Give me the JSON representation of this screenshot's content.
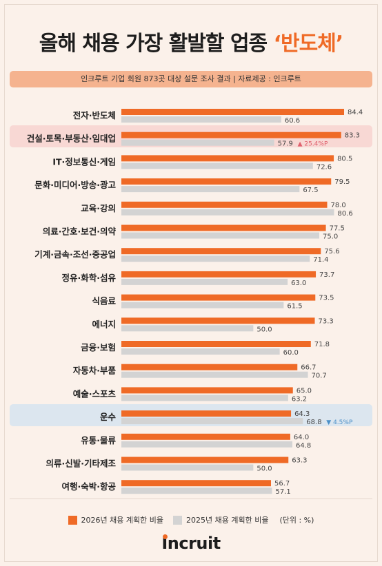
{
  "title": {
    "main": "올해 채용 가장 활발할 업종 ",
    "accent": "‘반도체’"
  },
  "subtitle": "인크루트 기업 회원 873곳 대상 설문 조사 결과 | 자료제공 : 인크루트",
  "chart_data": {
    "type": "bar",
    "orientation": "horizontal",
    "categories": [
      "전자·반도체",
      "건설·토목·부동산·임대업",
      "IT·정보통신·게임",
      "문화·미디어·방송·광고",
      "교육·강의",
      "의료·간호·보건·의약",
      "기계·금속·조선·중공업",
      "정유·화학·섬유",
      "식음료",
      "에너지",
      "금융·보험",
      "자동차·부품",
      "예술·스포츠",
      "운수",
      "유통·물류",
      "의류·신발·기타제조",
      "여행·숙박·항공"
    ],
    "series": [
      {
        "name": "2026년 채용 계획한 비율",
        "color": "#ef6a26",
        "values": [
          84.4,
          83.3,
          80.5,
          79.5,
          78.0,
          77.5,
          75.6,
          73.7,
          73.5,
          73.3,
          71.8,
          66.7,
          65.0,
          64.3,
          64.0,
          63.3,
          56.7
        ]
      },
      {
        "name": "2025년 채용 계획한 비율",
        "color": "#d3d3d3",
        "values": [
          60.6,
          57.9,
          72.6,
          67.5,
          80.6,
          75.0,
          71.4,
          63.0,
          61.5,
          50.0,
          60.0,
          70.7,
          63.2,
          68.8,
          64.8,
          50.0,
          57.1
        ]
      }
    ],
    "value_labels_2026": [
      "84.4",
      "83.3",
      "80.5",
      "79.5",
      "78.0",
      "77.5",
      "75.6",
      "73.7",
      "73.5",
      "73.3",
      "71.8",
      "66.7",
      "65.0",
      "64.3",
      "64.0",
      "63.3",
      "56.7"
    ],
    "value_labels_2025": [
      "60.6",
      "57.9",
      "72.6",
      "67.5",
      "80.6",
      "75.0",
      "71.4",
      "63.0",
      "61.5",
      "50.0",
      "60.0",
      "70.7",
      "63.2",
      "68.8",
      "64.8",
      "50.0",
      "57.1"
    ],
    "annotations": [
      {
        "category": "건설·토목·부동산·임대업",
        "text": "▲ 25.4%P",
        "direction": "up"
      },
      {
        "category": "운수",
        "text": "▼ 4.5%P",
        "direction": "down"
      }
    ],
    "highlights": [
      {
        "category": "건설·토목·부동산·임대업",
        "color": "#f8d8d4"
      },
      {
        "category": "운수",
        "color": "#dce6ef"
      }
    ],
    "unit": "(단위 : %)"
  },
  "legend": {
    "item_2026": "2026년 채용 계획한 비율",
    "item_2025": "2025년 채용 계획한 비율",
    "unit": "(단위 : %)"
  },
  "logo": {
    "dot_letter": "I",
    "rest": "ncruit"
  }
}
